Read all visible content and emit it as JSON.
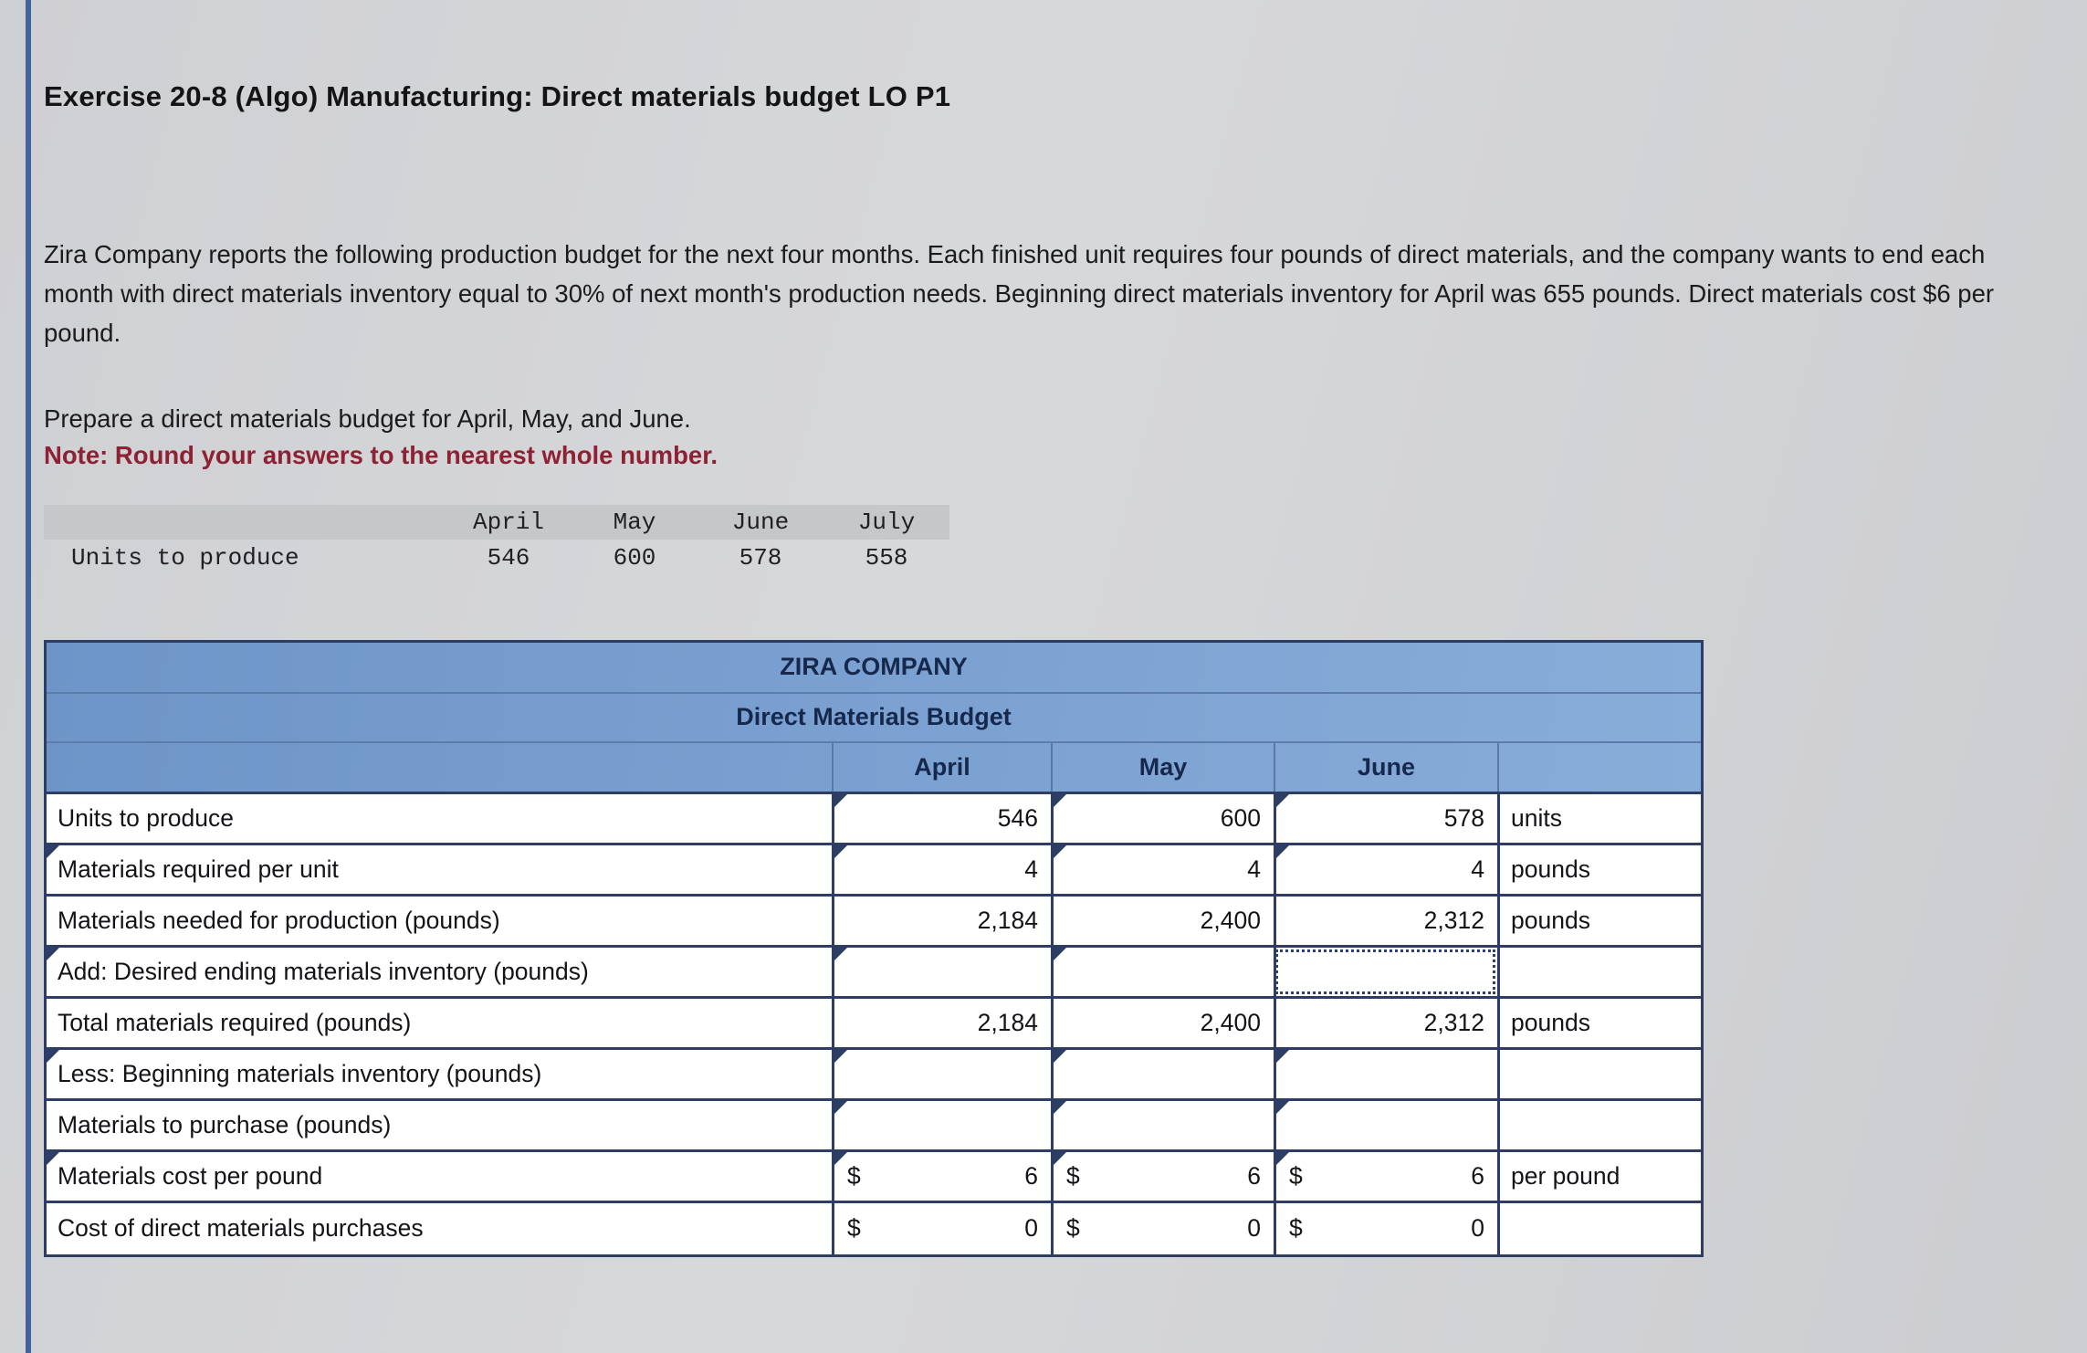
{
  "page": {
    "title": "Exercise 20-8 (Algo) Manufacturing: Direct materials budget LO P1",
    "intro": "Zira Company reports the following production budget for the next four months. Each finished unit requires four pounds of direct materials, and the company wants to end each month with direct materials inventory equal to 30% of next month's production needs. Beginning direct materials inventory for April was 655 pounds. Direct materials cost $6 per pound.",
    "task": "Prepare a direct materials budget for April, May, and June.",
    "note": "Note: Round your answers to the nearest whole number."
  },
  "production_table": {
    "columns": [
      "April",
      "May",
      "June",
      "July"
    ],
    "row_label": "Units to produce",
    "values": [
      "546",
      "600",
      "578",
      "558"
    ]
  },
  "budget_table": {
    "title": "ZIRA COMPANY",
    "subtitle": "Direct Materials Budget",
    "columns": [
      "April",
      "May",
      "June"
    ],
    "rows": [
      {
        "label": "Units to produce",
        "label_marker": false,
        "cells": [
          {
            "v": "546",
            "marker": true
          },
          {
            "v": "600",
            "marker": true
          },
          {
            "v": "578",
            "marker": true
          }
        ],
        "unit": "units"
      },
      {
        "label": "Materials required per unit",
        "label_marker": true,
        "cells": [
          {
            "v": "4",
            "marker": true
          },
          {
            "v": "4",
            "marker": true
          },
          {
            "v": "4",
            "marker": true
          }
        ],
        "unit": "pounds"
      },
      {
        "label": "Materials needed for production (pounds)",
        "label_marker": false,
        "cells": [
          {
            "v": "2,184"
          },
          {
            "v": "2,400"
          },
          {
            "v": "2,312"
          }
        ],
        "unit": "pounds"
      },
      {
        "label": "Add: Desired ending materials inventory (pounds)",
        "label_marker": true,
        "cells": [
          {
            "v": "",
            "marker": true
          },
          {
            "v": "",
            "marker": true
          },
          {
            "v": "",
            "active": true
          }
        ],
        "unit": ""
      },
      {
        "label": "Total materials required (pounds)",
        "label_marker": false,
        "cells": [
          {
            "v": "2,184"
          },
          {
            "v": "2,400"
          },
          {
            "v": "2,312"
          }
        ],
        "unit": "pounds"
      },
      {
        "label": "Less: Beginning materials inventory (pounds)",
        "label_marker": true,
        "cells": [
          {
            "v": "",
            "marker": true
          },
          {
            "v": "",
            "marker": true
          },
          {
            "v": "",
            "marker": true
          }
        ],
        "unit": ""
      },
      {
        "label": "Materials to purchase (pounds)",
        "label_marker": false,
        "cells": [
          {
            "v": "",
            "marker": true
          },
          {
            "v": "",
            "marker": true
          },
          {
            "v": "",
            "marker": true
          }
        ],
        "unit": ""
      },
      {
        "label": "Materials cost per pound",
        "label_marker": true,
        "cells": [
          {
            "v": "6",
            "prefix": "$",
            "marker": true
          },
          {
            "v": "6",
            "prefix": "$",
            "marker": true
          },
          {
            "v": "6",
            "prefix": "$",
            "marker": true
          }
        ],
        "unit": "per pound"
      },
      {
        "label": "Cost of direct materials purchases",
        "label_marker": false,
        "cells": [
          {
            "v": "0",
            "prefix": "$"
          },
          {
            "v": "0",
            "prefix": "$"
          },
          {
            "v": "0",
            "prefix": "$"
          }
        ],
        "unit": ""
      }
    ]
  },
  "colors": {
    "header_blue": "#7aa0cf",
    "border_navy": "#2e3d66",
    "note_maroon": "#8e2134",
    "page_background": "#d3d4d6",
    "accent_bar": "#44639c"
  }
}
